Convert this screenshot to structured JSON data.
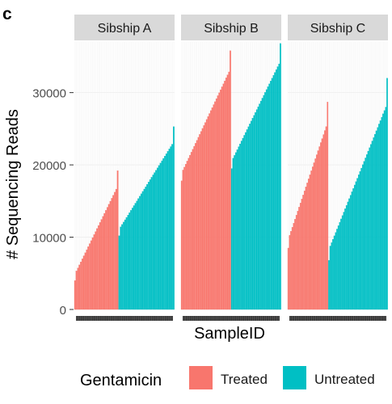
{
  "panel_letter": "c",
  "chart_data": {
    "type": "bar",
    "ylabel": "# Sequencing Reads",
    "xlabel": "SampleID",
    "ylim": [
      0,
      37000
    ],
    "yticks": [
      0,
      10000,
      20000,
      30000
    ],
    "grid": true,
    "legend": {
      "title": "Gentamicin",
      "placement": "bottom",
      "entries": [
        {
          "label": "Treated",
          "color": "#F8766D"
        },
        {
          "label": "Untreated",
          "color": "#00BFC4"
        }
      ]
    },
    "facets": [
      {
        "name": "Sibship A",
        "treated_range": [
          4000,
          19200
        ],
        "untreated_range": [
          10200,
          25300
        ],
        "n_treated": 30,
        "n_untreated": 38
      },
      {
        "name": "Sibship B",
        "treated_range": [
          17800,
          35800
        ],
        "untreated_range": [
          19500,
          36800
        ],
        "n_treated": 36,
        "n_untreated": 36
      },
      {
        "name": "Sibship C",
        "treated_range": [
          8500,
          28700
        ],
        "untreated_range": [
          6800,
          32000
        ],
        "n_treated": 30,
        "n_untreated": 44
      }
    ]
  }
}
